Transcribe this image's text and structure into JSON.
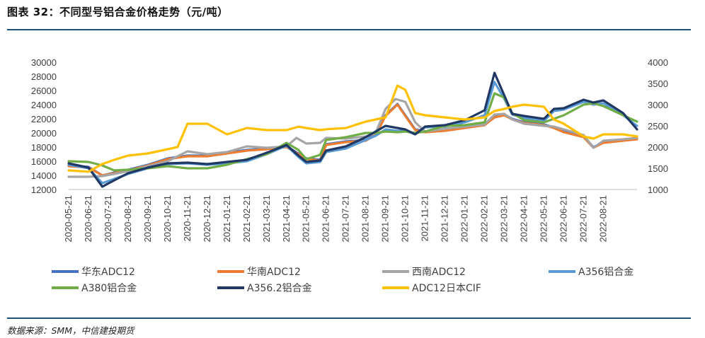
{
  "figure_title": "图表 32：不同型号铝合金价格走势（元/吨）",
  "source": "数据来源：SMM，中信建投期货",
  "chart_data": {
    "type": "line",
    "title": "不同型号铝合金价格走势（元/吨）",
    "x_categories": [
      "2020-05-21",
      "2020-06-21",
      "2020-07-21",
      "2020-08-21",
      "2020-09-21",
      "2020-10-21",
      "2020-11-21",
      "2020-12-21",
      "2021-01-21",
      "2021-02-21",
      "2021-03-21",
      "2021-04-21",
      "2021-05-21",
      "2021-06-21",
      "2021-07-21",
      "2021-08-21",
      "2021-09-21",
      "2021-10-21",
      "2021-11-21",
      "2021-12-21",
      "2022-01-21",
      "2022-02-21",
      "2022-03-21",
      "2022-04-21",
      "2022-05-21",
      "2022-06-21",
      "2022-07-21",
      "2022-08-21"
    ],
    "x_end_index": 28.7,
    "y_left": {
      "min": 12000,
      "max": 30000,
      "ticks": [
        12000,
        14000,
        16000,
        18000,
        20000,
        22000,
        24000,
        26000,
        28000,
        30000
      ]
    },
    "y_right": {
      "min": 1000,
      "max": 4000,
      "ticks": [
        1000,
        1500,
        2000,
        2500,
        3000,
        3500,
        4000
      ]
    },
    "series": [
      {
        "name": "华东ADC12",
        "color": "#4472c4",
        "axis": "left",
        "points": [
          [
            0,
            15400
          ],
          [
            1,
            15200
          ],
          [
            1.7,
            14000
          ],
          [
            2.3,
            14400
          ],
          [
            3,
            14800
          ],
          [
            4,
            15500
          ],
          [
            5,
            16400
          ],
          [
            6,
            16800
          ],
          [
            7,
            16800
          ],
          [
            8,
            17200
          ],
          [
            9,
            17600
          ],
          [
            10,
            17800
          ],
          [
            11,
            18100
          ],
          [
            11.6,
            17100
          ],
          [
            12,
            16400
          ],
          [
            12.7,
            16200
          ],
          [
            13,
            18400
          ],
          [
            14,
            18800
          ],
          [
            15,
            19000
          ],
          [
            15.5,
            19800
          ],
          [
            16,
            22500
          ],
          [
            16.6,
            24100
          ],
          [
            17,
            22500
          ],
          [
            17.5,
            20500
          ],
          [
            18,
            20200
          ],
          [
            19,
            20400
          ],
          [
            20,
            20800
          ],
          [
            21,
            21200
          ],
          [
            21.5,
            22300
          ],
          [
            22,
            22600
          ],
          [
            22.4,
            22000
          ],
          [
            23,
            21500
          ],
          [
            24,
            21200
          ],
          [
            24.5,
            20800
          ],
          [
            25,
            20200
          ],
          [
            26,
            19500
          ],
          [
            26.5,
            18000
          ],
          [
            27,
            18700
          ],
          [
            28,
            19000
          ],
          [
            28.7,
            19200
          ]
        ]
      },
      {
        "name": "华南ADC12",
        "color": "#ed7d31",
        "axis": "left",
        "points": [
          [
            0,
            15300
          ],
          [
            1,
            15100
          ],
          [
            1.7,
            14000
          ],
          [
            2.3,
            14300
          ],
          [
            3,
            14700
          ],
          [
            4,
            15400
          ],
          [
            5,
            16300
          ],
          [
            6,
            16700
          ],
          [
            7,
            16700
          ],
          [
            8,
            17100
          ],
          [
            9,
            17500
          ],
          [
            10,
            17700
          ],
          [
            11,
            18000
          ],
          [
            11.6,
            17000
          ],
          [
            12,
            16300
          ],
          [
            12.7,
            16100
          ],
          [
            13,
            18300
          ],
          [
            14,
            18700
          ],
          [
            15,
            18900
          ],
          [
            15.5,
            19700
          ],
          [
            16,
            22400
          ],
          [
            16.6,
            24000
          ],
          [
            17,
            22400
          ],
          [
            17.5,
            20400
          ],
          [
            18,
            20100
          ],
          [
            19,
            20300
          ],
          [
            20,
            20700
          ],
          [
            21,
            21100
          ],
          [
            21.5,
            22200
          ],
          [
            22,
            22500
          ],
          [
            22.4,
            21900
          ],
          [
            23,
            21400
          ],
          [
            24,
            21100
          ],
          [
            24.5,
            20700
          ],
          [
            25,
            20100
          ],
          [
            26,
            19400
          ],
          [
            26.5,
            17900
          ],
          [
            27,
            18600
          ],
          [
            28,
            18900
          ],
          [
            28.7,
            19100
          ]
        ]
      },
      {
        "name": "西南ADC12",
        "color": "#a5a5a5",
        "axis": "left",
        "points": [
          [
            0,
            13800
          ],
          [
            1,
            13800
          ],
          [
            1.7,
            13900
          ],
          [
            2.3,
            14200
          ],
          [
            3,
            14600
          ],
          [
            4,
            15300
          ],
          [
            5,
            16000
          ],
          [
            6,
            17400
          ],
          [
            7,
            17000
          ],
          [
            8,
            17300
          ],
          [
            9,
            18100
          ],
          [
            10,
            17900
          ],
          [
            11,
            18100
          ],
          [
            11.5,
            19300
          ],
          [
            12,
            18500
          ],
          [
            12.7,
            18600
          ],
          [
            13,
            19300
          ],
          [
            14,
            19200
          ],
          [
            15,
            19500
          ],
          [
            15.5,
            20000
          ],
          [
            16,
            23400
          ],
          [
            16.5,
            24800
          ],
          [
            17,
            24400
          ],
          [
            17.5,
            21500
          ],
          [
            18,
            20200
          ],
          [
            19,
            20600
          ],
          [
            20,
            20900
          ],
          [
            21,
            21200
          ],
          [
            21.5,
            22600
          ],
          [
            22,
            22700
          ],
          [
            22.4,
            21900
          ],
          [
            23,
            21300
          ],
          [
            24,
            21000
          ],
          [
            24.5,
            20900
          ],
          [
            25,
            20500
          ],
          [
            26,
            19700
          ],
          [
            26.5,
            17900
          ],
          [
            27,
            18900
          ],
          [
            28,
            19100
          ],
          [
            28.7,
            19300
          ]
        ]
      },
      {
        "name": "A356铝合金",
        "color": "#5b9bd5",
        "axis": "left",
        "points": [
          [
            0,
            15500
          ],
          [
            1,
            15000
          ],
          [
            1.7,
            12900
          ],
          [
            2.3,
            13500
          ],
          [
            3,
            14200
          ],
          [
            4,
            15000
          ],
          [
            5,
            15600
          ],
          [
            6,
            15700
          ],
          [
            7,
            15500
          ],
          [
            8,
            15700
          ],
          [
            9,
            16000
          ],
          [
            10,
            17000
          ],
          [
            11,
            18200
          ],
          [
            11.6,
            16600
          ],
          [
            12,
            15700
          ],
          [
            12.7,
            15900
          ],
          [
            13,
            17300
          ],
          [
            14,
            17800
          ],
          [
            15,
            19000
          ],
          [
            15.5,
            19600
          ],
          [
            16,
            20500
          ],
          [
            16.6,
            20300
          ],
          [
            17,
            20300
          ],
          [
            17.5,
            19800
          ],
          [
            18,
            20800
          ],
          [
            19,
            20900
          ],
          [
            20,
            21500
          ],
          [
            21,
            22500
          ],
          [
            21.5,
            27200
          ],
          [
            22,
            24800
          ],
          [
            22.4,
            22600
          ],
          [
            23,
            22100
          ],
          [
            24,
            21700
          ],
          [
            24.5,
            23100
          ],
          [
            25,
            23300
          ],
          [
            26,
            24400
          ],
          [
            26.5,
            24000
          ],
          [
            27,
            24200
          ],
          [
            28,
            22500
          ],
          [
            28.7,
            21000
          ]
        ]
      },
      {
        "name": "A380铝合金",
        "color": "#70ad47",
        "axis": "left",
        "points": [
          [
            0,
            16000
          ],
          [
            1,
            15900
          ],
          [
            1.7,
            15400
          ],
          [
            2.3,
            14700
          ],
          [
            3,
            14800
          ],
          [
            4,
            15000
          ],
          [
            5,
            15300
          ],
          [
            6,
            15000
          ],
          [
            7,
            15000
          ],
          [
            8,
            15500
          ],
          [
            9,
            16300
          ],
          [
            10,
            17000
          ],
          [
            11,
            18600
          ],
          [
            11.6,
            17600
          ],
          [
            12,
            16300
          ],
          [
            12.7,
            16900
          ],
          [
            13,
            19000
          ],
          [
            14,
            19400
          ],
          [
            15,
            20000
          ],
          [
            15.5,
            20000
          ],
          [
            16,
            20200
          ],
          [
            16.6,
            20100
          ],
          [
            17,
            20200
          ],
          [
            17.5,
            20000
          ],
          [
            18,
            20200
          ],
          [
            19,
            21000
          ],
          [
            20,
            21100
          ],
          [
            21,
            21500
          ],
          [
            21.5,
            25600
          ],
          [
            22,
            25000
          ],
          [
            22.4,
            22800
          ],
          [
            23,
            21800
          ],
          [
            24,
            21500
          ],
          [
            24.5,
            22000
          ],
          [
            25,
            22500
          ],
          [
            26,
            24000
          ],
          [
            26.5,
            24200
          ],
          [
            27,
            23800
          ],
          [
            28,
            22500
          ],
          [
            28.7,
            21600
          ]
        ]
      },
      {
        "name": "A356.2铝合金",
        "color": "#1f3864",
        "axis": "left",
        "points": [
          [
            0,
            15700
          ],
          [
            1,
            15100
          ],
          [
            1.7,
            12400
          ],
          [
            2.3,
            13300
          ],
          [
            3,
            14300
          ],
          [
            4,
            15100
          ],
          [
            5,
            15700
          ],
          [
            6,
            15800
          ],
          [
            7,
            15600
          ],
          [
            8,
            15900
          ],
          [
            9,
            16200
          ],
          [
            10,
            17200
          ],
          [
            11,
            18300
          ],
          [
            11.6,
            16800
          ],
          [
            12,
            15900
          ],
          [
            12.7,
            16100
          ],
          [
            13,
            17500
          ],
          [
            14,
            18100
          ],
          [
            15,
            19400
          ],
          [
            15.5,
            20200
          ],
          [
            16,
            21000
          ],
          [
            16.6,
            20700
          ],
          [
            17,
            20500
          ],
          [
            17.5,
            19800
          ],
          [
            18,
            20900
          ],
          [
            19,
            21100
          ],
          [
            20,
            21800
          ],
          [
            21,
            23200
          ],
          [
            21.5,
            28500
          ],
          [
            22,
            25300
          ],
          [
            22.4,
            22700
          ],
          [
            23,
            22400
          ],
          [
            24,
            22000
          ],
          [
            24.5,
            23400
          ],
          [
            25,
            23500
          ],
          [
            26,
            24700
          ],
          [
            26.5,
            24300
          ],
          [
            27,
            24600
          ],
          [
            28,
            22800
          ],
          [
            28.7,
            20500
          ]
        ]
      },
      {
        "name": "ADC12日本CIF",
        "color": "#ffc000",
        "axis": "right",
        "points": [
          [
            0,
            1450
          ],
          [
            1,
            1420
          ],
          [
            1.7,
            1600
          ],
          [
            2.3,
            1700
          ],
          [
            3,
            1800
          ],
          [
            4,
            1850
          ],
          [
            5,
            1950
          ],
          [
            5.5,
            2000
          ],
          [
            6,
            2550
          ],
          [
            7,
            2550
          ],
          [
            8,
            2300
          ],
          [
            9,
            2450
          ],
          [
            10,
            2400
          ],
          [
            11,
            2400
          ],
          [
            11.6,
            2480
          ],
          [
            12,
            2450
          ],
          [
            12.7,
            2400
          ],
          [
            13,
            2420
          ],
          [
            14,
            2450
          ],
          [
            15,
            2600
          ],
          [
            15.5,
            2650
          ],
          [
            16,
            2700
          ],
          [
            16.6,
            3450
          ],
          [
            17,
            3350
          ],
          [
            17.5,
            2800
          ],
          [
            18,
            2750
          ],
          [
            19,
            2700
          ],
          [
            20,
            2650
          ],
          [
            21,
            2700
          ],
          [
            21.5,
            2850
          ],
          [
            22,
            2900
          ],
          [
            22.4,
            2950
          ],
          [
            23,
            3000
          ],
          [
            24,
            2950
          ],
          [
            24.5,
            2650
          ],
          [
            25,
            2550
          ],
          [
            26,
            2250
          ],
          [
            26.5,
            2200
          ],
          [
            27,
            2300
          ],
          [
            28,
            2300
          ],
          [
            28.7,
            2250
          ]
        ]
      }
    ],
    "legend": {
      "placement": "bottom",
      "entries": [
        "华东ADC12",
        "华南ADC12",
        "西南ADC12",
        "A356铝合金",
        "A380铝合金",
        "A356.2铝合金",
        "ADC12日本CIF"
      ]
    }
  }
}
